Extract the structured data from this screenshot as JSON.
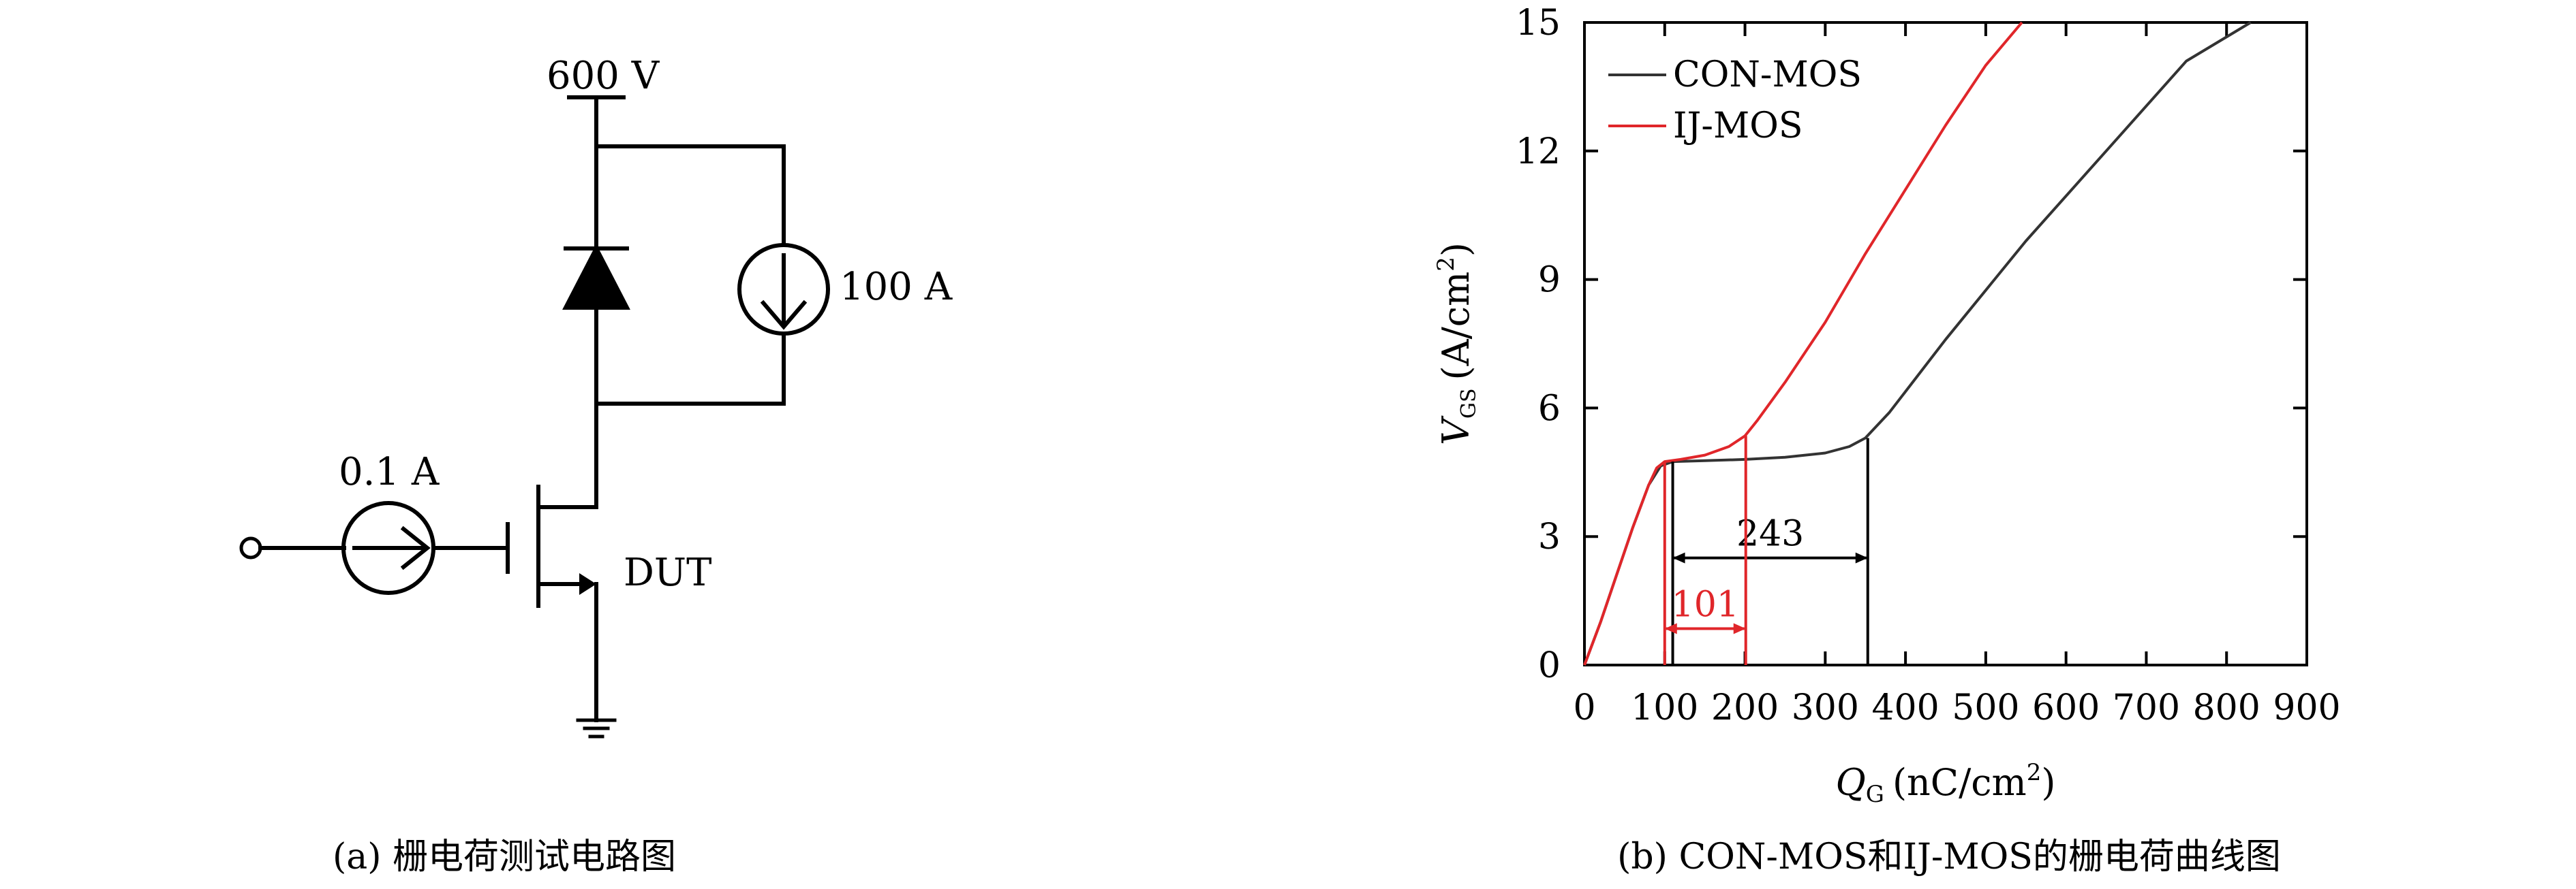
{
  "circuit": {
    "supply_label": "600 V",
    "source_label": "100 A",
    "gate_source_label": "0.1 A",
    "dut_label": "DUT",
    "caption": "(a) 栅电荷测试电路图"
  },
  "chart_data": {
    "type": "line",
    "title": "",
    "xlabel_var": "Q",
    "xlabel_sub": "G",
    "xlabel_units": "(nC/cm",
    "xlabel_sup": "2",
    "xlabel_close": ")",
    "ylabel_var": "V",
    "ylabel_sub": "GS",
    "ylabel_units": "(A/cm",
    "ylabel_sup": "2",
    "ylabel_close": ")",
    "xlim": [
      0,
      900
    ],
    "ylim": [
      0,
      15
    ],
    "xticks": [
      0,
      100,
      200,
      300,
      400,
      500,
      600,
      700,
      800,
      900
    ],
    "yticks": [
      0,
      3,
      6,
      9,
      12,
      15
    ],
    "grid": false,
    "legend": "top-left",
    "series": [
      {
        "name": "CON-MOS",
        "color": "#333333",
        "x": [
          0,
          20,
          40,
          60,
          80,
          95,
          110,
          150,
          200,
          250,
          300,
          330,
          350,
          380,
          450,
          550,
          650,
          750,
          830
        ],
        "y": [
          0,
          1.0,
          2.1,
          3.2,
          4.2,
          4.65,
          4.75,
          4.77,
          4.8,
          4.85,
          4.95,
          5.1,
          5.3,
          5.9,
          7.6,
          9.9,
          12.0,
          14.1,
          15.0
        ]
      },
      {
        "name": "IJ-MOS",
        "color": "#e0262a",
        "x": [
          0,
          20,
          40,
          60,
          80,
          90,
          100,
          120,
          150,
          180,
          200,
          215,
          250,
          300,
          350,
          400,
          450,
          500,
          545
        ],
        "y": [
          0,
          1.0,
          2.1,
          3.2,
          4.2,
          4.6,
          4.75,
          4.8,
          4.9,
          5.1,
          5.35,
          5.7,
          6.6,
          8.0,
          9.6,
          11.1,
          12.6,
          14.0,
          15.0
        ]
      }
    ],
    "annotations": [
      {
        "text": "243",
        "x_start": 110,
        "x_end": 353,
        "y": 2.5,
        "color": "#000000"
      },
      {
        "text": "101",
        "x_start": 100,
        "x_end": 201,
        "y": 0.85,
        "color": "#e0262a"
      }
    ],
    "caption": "(b) CON-MOS和IJ-MOS的栅电荷曲线图"
  }
}
